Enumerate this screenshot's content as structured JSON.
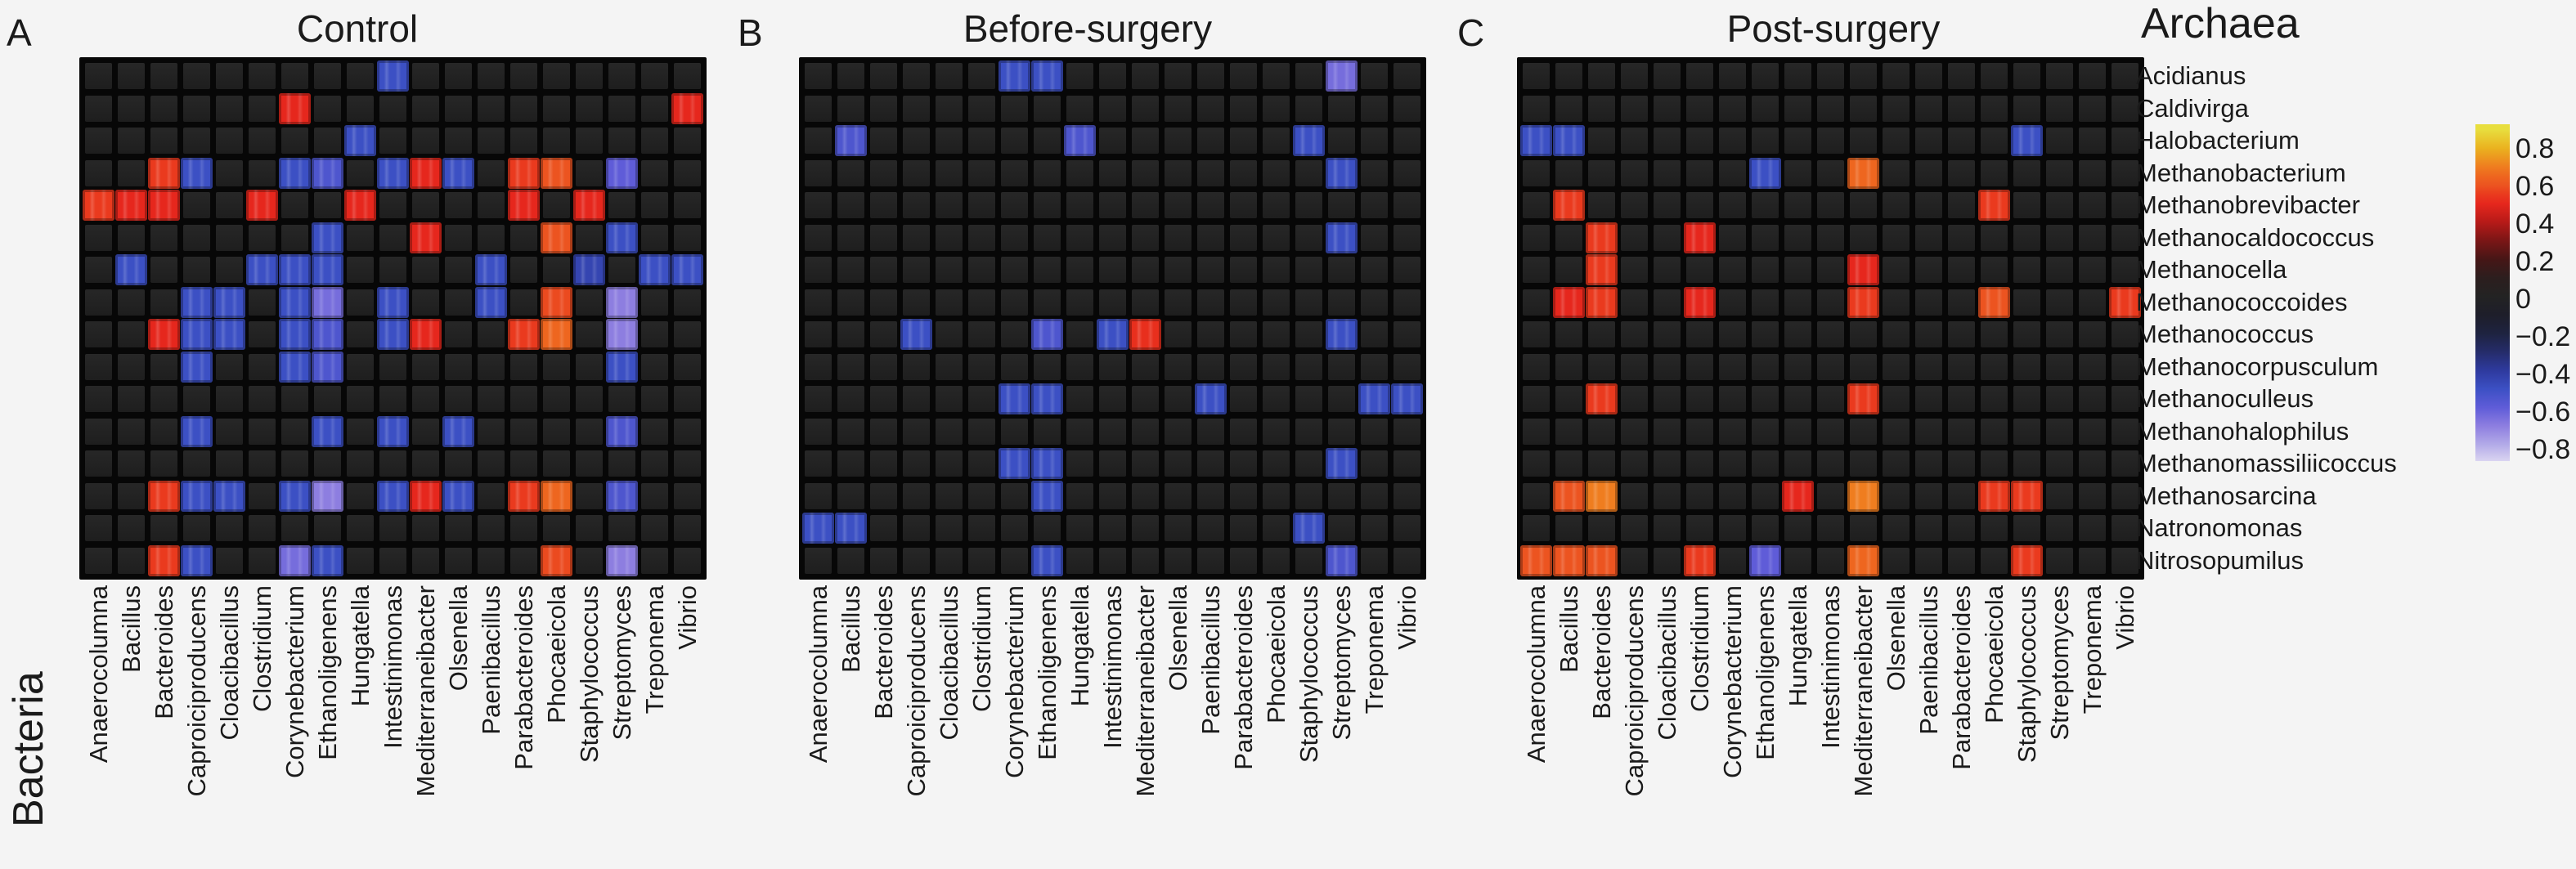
{
  "figure": {
    "x_axis_title": "Bacteria",
    "y_axis_title": "Archaea",
    "background_color": "#f4f4f4",
    "grid_background_color": "#070707",
    "empty_cell_color": "#232323",
    "colorbar": {
      "tick_labels": [
        "0.8",
        "0.6",
        "0.4",
        "0.2",
        "0",
        "−0.2",
        "−0.4",
        "−0.6",
        "−0.8"
      ],
      "tick_values": [
        0.8,
        0.6,
        0.4,
        0.2,
        0,
        -0.2,
        -0.4,
        -0.6,
        -0.8
      ]
    }
  },
  "chart_data": {
    "type": "heatmap",
    "title": "",
    "xlabel": "Bacteria",
    "ylabel": "Archaea",
    "value_range": [
      -0.9,
      0.9
    ],
    "legend_position": "right",
    "colormap_stops": [
      [
        -0.9,
        "#ded9f2"
      ],
      [
        -0.8,
        "#b3abe8"
      ],
      [
        -0.7,
        "#8d7ee0"
      ],
      [
        -0.6,
        "#5f5cd8"
      ],
      [
        -0.5,
        "#3c50c4"
      ],
      [
        -0.4,
        "#2e3a9e"
      ],
      [
        -0.3,
        "#252c6a"
      ],
      [
        -0.2,
        "#1e2340"
      ],
      [
        -0.1,
        "#1e1e2a"
      ],
      [
        0,
        "#232323"
      ],
      [
        0.1,
        "#2c1e1e"
      ],
      [
        0.2,
        "#461616"
      ],
      [
        0.3,
        "#7a1616"
      ],
      [
        0.4,
        "#b61a18"
      ],
      [
        0.5,
        "#e6271d"
      ],
      [
        0.55,
        "#ea3a1e"
      ],
      [
        0.6,
        "#ec5420"
      ],
      [
        0.65,
        "#ee661f"
      ],
      [
        0.7,
        "#ef7d1f"
      ],
      [
        0.8,
        "#eab21f"
      ],
      [
        0.9,
        "#e8de3e"
      ]
    ],
    "categories_x": [
      "Anaerocolumna",
      "Bacillus",
      "Bacteroides",
      "Caproiciproducens",
      "Cloacibacillus",
      "Clostridium",
      "Corynebacterium",
      "Ethanoligenens",
      "Hungatella",
      "Intestinimonas",
      "Mediterraneibacter",
      "Olsenella",
      "Paenibacillus",
      "Parabacteroides",
      "Phocaeicola",
      "Staphylococcus",
      "Streptomyces",
      "Treponema",
      "Vibrio"
    ],
    "categories_y": [
      "Acidianus",
      "Caldivirga",
      "Halobacterium",
      "Methanobacterium",
      "Methanobrevibacter",
      "Methanocaldococcus",
      "Methanocella",
      "Methanococcoides",
      "Methanococcus",
      "Methanocorpusculum",
      "Methanoculleus",
      "Methanohalophilus",
      "Methanomassiliicoccus",
      "Methanosarcina",
      "Natronomonas",
      "Nitrosopumilus"
    ],
    "panels": [
      {
        "letter": "A",
        "title": "Control",
        "cells": [
          [
            0,
            9,
            -0.5
          ],
          [
            1,
            6,
            0.5
          ],
          [
            1,
            18,
            0.5
          ],
          [
            2,
            8,
            -0.5
          ],
          [
            3,
            2,
            0.55
          ],
          [
            3,
            3,
            -0.5
          ],
          [
            3,
            6,
            -0.5
          ],
          [
            3,
            7,
            -0.55
          ],
          [
            3,
            9,
            -0.5
          ],
          [
            3,
            10,
            0.5
          ],
          [
            3,
            11,
            -0.5
          ],
          [
            3,
            13,
            0.55
          ],
          [
            3,
            14,
            0.6
          ],
          [
            3,
            16,
            -0.6
          ],
          [
            4,
            0,
            0.55
          ],
          [
            4,
            1,
            0.5
          ],
          [
            4,
            2,
            0.5
          ],
          [
            4,
            5,
            0.5
          ],
          [
            4,
            8,
            0.5
          ],
          [
            4,
            13,
            0.5
          ],
          [
            4,
            15,
            0.5
          ],
          [
            5,
            7,
            -0.5
          ],
          [
            5,
            10,
            0.5
          ],
          [
            5,
            14,
            0.6
          ],
          [
            5,
            16,
            -0.5
          ],
          [
            6,
            1,
            -0.5
          ],
          [
            6,
            5,
            -0.5
          ],
          [
            6,
            6,
            -0.5
          ],
          [
            6,
            7,
            -0.5
          ],
          [
            6,
            12,
            -0.5
          ],
          [
            6,
            15,
            -0.45
          ],
          [
            6,
            17,
            -0.5
          ],
          [
            6,
            18,
            -0.5
          ],
          [
            7,
            3,
            -0.5
          ],
          [
            7,
            4,
            -0.5
          ],
          [
            7,
            6,
            -0.5
          ],
          [
            7,
            7,
            -0.65
          ],
          [
            7,
            9,
            -0.5
          ],
          [
            7,
            12,
            -0.5
          ],
          [
            7,
            14,
            0.58
          ],
          [
            7,
            16,
            -0.7
          ],
          [
            8,
            2,
            0.5
          ],
          [
            8,
            3,
            -0.5
          ],
          [
            8,
            4,
            -0.5
          ],
          [
            8,
            6,
            -0.5
          ],
          [
            8,
            7,
            -0.55
          ],
          [
            8,
            9,
            -0.5
          ],
          [
            8,
            10,
            0.5
          ],
          [
            8,
            13,
            0.55
          ],
          [
            8,
            14,
            0.65
          ],
          [
            8,
            16,
            -0.7
          ],
          [
            9,
            3,
            -0.5
          ],
          [
            9,
            6,
            -0.5
          ],
          [
            9,
            7,
            -0.55
          ],
          [
            9,
            16,
            -0.5
          ],
          [
            11,
            3,
            -0.5
          ],
          [
            11,
            7,
            -0.5
          ],
          [
            11,
            9,
            -0.5
          ],
          [
            11,
            11,
            -0.5
          ],
          [
            11,
            16,
            -0.55
          ],
          [
            13,
            2,
            0.55
          ],
          [
            13,
            3,
            -0.5
          ],
          [
            13,
            4,
            -0.5
          ],
          [
            13,
            6,
            -0.5
          ],
          [
            13,
            7,
            -0.7
          ],
          [
            13,
            9,
            -0.5
          ],
          [
            13,
            10,
            0.5
          ],
          [
            13,
            11,
            -0.5
          ],
          [
            13,
            13,
            0.55
          ],
          [
            13,
            14,
            0.65
          ],
          [
            13,
            16,
            -0.55
          ],
          [
            15,
            2,
            0.55
          ],
          [
            15,
            3,
            -0.5
          ],
          [
            15,
            6,
            -0.65
          ],
          [
            15,
            7,
            -0.5
          ],
          [
            15,
            14,
            0.58
          ],
          [
            15,
            16,
            -0.7
          ]
        ]
      },
      {
        "letter": "B",
        "title": "Before-surgery",
        "cells": [
          [
            0,
            6,
            -0.5
          ],
          [
            0,
            7,
            -0.5
          ],
          [
            0,
            16,
            -0.65
          ],
          [
            2,
            1,
            -0.55
          ],
          [
            2,
            8,
            -0.55
          ],
          [
            2,
            15,
            -0.5
          ],
          [
            3,
            16,
            -0.5
          ],
          [
            5,
            16,
            -0.5
          ],
          [
            8,
            3,
            -0.5
          ],
          [
            8,
            7,
            -0.55
          ],
          [
            8,
            9,
            -0.5
          ],
          [
            8,
            10,
            0.52
          ],
          [
            8,
            16,
            -0.5
          ],
          [
            10,
            6,
            -0.5
          ],
          [
            10,
            7,
            -0.5
          ],
          [
            10,
            12,
            -0.5
          ],
          [
            10,
            17,
            -0.5
          ],
          [
            10,
            18,
            -0.5
          ],
          [
            12,
            6,
            -0.5
          ],
          [
            12,
            7,
            -0.5
          ],
          [
            12,
            16,
            -0.5
          ],
          [
            13,
            7,
            -0.5
          ],
          [
            14,
            0,
            -0.5
          ],
          [
            14,
            1,
            -0.5
          ],
          [
            14,
            15,
            -0.5
          ],
          [
            15,
            7,
            -0.5
          ],
          [
            15,
            16,
            -0.55
          ]
        ]
      },
      {
        "letter": "C",
        "title": "Post-surgery",
        "cells": [
          [
            2,
            0,
            -0.5
          ],
          [
            2,
            1,
            -0.5
          ],
          [
            2,
            15,
            -0.5
          ],
          [
            3,
            7,
            -0.5
          ],
          [
            3,
            10,
            0.65
          ],
          [
            4,
            1,
            0.55
          ],
          [
            4,
            14,
            0.55
          ],
          [
            5,
            2,
            0.55
          ],
          [
            5,
            5,
            0.5
          ],
          [
            6,
            2,
            0.55
          ],
          [
            6,
            10,
            0.5
          ],
          [
            7,
            1,
            0.5
          ],
          [
            7,
            2,
            0.55
          ],
          [
            7,
            5,
            0.5
          ],
          [
            7,
            10,
            0.55
          ],
          [
            7,
            14,
            0.6
          ],
          [
            7,
            18,
            0.55
          ],
          [
            10,
            2,
            0.55
          ],
          [
            10,
            10,
            0.55
          ],
          [
            13,
            1,
            0.6
          ],
          [
            13,
            2,
            0.7
          ],
          [
            13,
            8,
            0.5
          ],
          [
            13,
            10,
            0.7
          ],
          [
            13,
            14,
            0.55
          ],
          [
            13,
            15,
            0.55
          ],
          [
            15,
            0,
            0.6
          ],
          [
            15,
            1,
            0.6
          ],
          [
            15,
            2,
            0.6
          ],
          [
            15,
            5,
            0.55
          ],
          [
            15,
            7,
            -0.6
          ],
          [
            15,
            10,
            0.65
          ],
          [
            15,
            15,
            0.55
          ]
        ]
      }
    ]
  }
}
